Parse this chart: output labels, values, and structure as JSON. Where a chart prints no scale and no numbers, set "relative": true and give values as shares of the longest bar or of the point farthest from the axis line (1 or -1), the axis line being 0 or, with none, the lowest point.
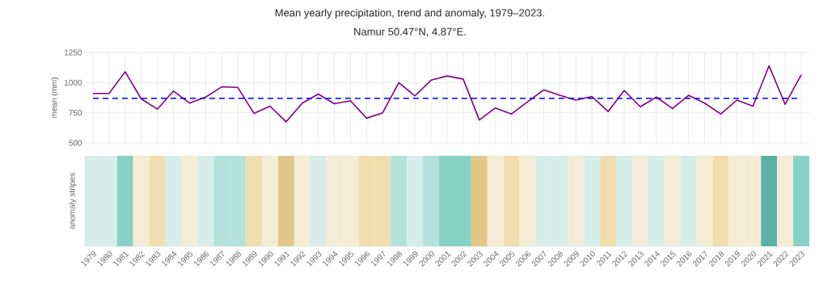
{
  "chart_data": [
    {
      "type": "line",
      "title": "Mean yearly precipitation, trend and anomaly, 1979–2023.",
      "subtitle": "Namur 50.47°N, 4.87°E.",
      "ylabel": "mean (mm)",
      "categories": [
        "1979",
        "1980",
        "1981",
        "1982",
        "1983",
        "1984",
        "1985",
        "1986",
        "1987",
        "1988",
        "1989",
        "1990",
        "1991",
        "1992",
        "1993",
        "1994",
        "1995",
        "1996",
        "1997",
        "1998",
        "1999",
        "2000",
        "2001",
        "2002",
        "2003",
        "2004",
        "2005",
        "2006",
        "2007",
        "2008",
        "2009",
        "2010",
        "2011",
        "2012",
        "2013",
        "2014",
        "2015",
        "2016",
        "2017",
        "2018",
        "2019",
        "2020",
        "2021",
        "2022",
        "2023"
      ],
      "values": [
        910,
        910,
        1090,
        865,
        780,
        930,
        830,
        880,
        965,
        960,
        745,
        805,
        675,
        830,
        905,
        825,
        850,
        705,
        750,
        1000,
        890,
        1020,
        1055,
        1030,
        690,
        790,
        740,
        840,
        940,
        895,
        855,
        885,
        760,
        935,
        800,
        880,
        785,
        895,
        830,
        740,
        855,
        805,
        1140,
        820,
        1065
      ],
      "color": "#800080",
      "ylim": [
        500,
        1250
      ],
      "yticks": [
        500,
        750,
        1000,
        1250
      ],
      "grid": true,
      "tick_labels": "y",
      "marker": "none",
      "ref_lines": [
        {
          "axis": "y",
          "value": 870,
          "color": "#0000ff",
          "line_style": "dashed"
        }
      ]
    },
    {
      "type": "bar",
      "ylabel": "anomaly stripes",
      "relative": true,
      "categories": [
        "1979",
        "1980",
        "1981",
        "1982",
        "1983",
        "1984",
        "1985",
        "1986",
        "1987",
        "1988",
        "1989",
        "1990",
        "1991",
        "1992",
        "1993",
        "1994",
        "1995",
        "1996",
        "1997",
        "1998",
        "1999",
        "2000",
        "2001",
        "2002",
        "2003",
        "2004",
        "2005",
        "2006",
        "2007",
        "2008",
        "2009",
        "2010",
        "2011",
        "2012",
        "2013",
        "2014",
        "2015",
        "2016",
        "2017",
        "2018",
        "2019",
        "2020",
        "2021",
        "2022",
        "2023"
      ],
      "values": [
        1,
        1,
        1,
        1,
        1,
        1,
        1,
        1,
        1,
        1,
        1,
        1,
        1,
        1,
        1,
        1,
        1,
        1,
        1,
        1,
        1,
        1,
        1,
        1,
        1,
        1,
        1,
        1,
        1,
        1,
        1,
        1,
        1,
        1,
        1,
        1,
        1,
        1,
        1,
        1,
        1,
        1,
        1,
        1,
        1
      ],
      "colors": [
        "#d6ede9",
        "#d6ede9",
        "#88d1c5",
        "#f5ecd6",
        "#f1deae",
        "#d6ede9",
        "#f5ecd6",
        "#d6ede9",
        "#b3e2db",
        "#b3e2db",
        "#f1deae",
        "#f5ecd6",
        "#e3c788",
        "#f5ecd6",
        "#d6ede9",
        "#f5ecd6",
        "#f5ecd6",
        "#f1deae",
        "#f1deae",
        "#b3e2db",
        "#d6ede9",
        "#b3e2db",
        "#88d1c5",
        "#88d1c5",
        "#e3c788",
        "#f5ecd6",
        "#f1deae",
        "#f5ecd6",
        "#d6ede9",
        "#d6ede9",
        "#f5ecd6",
        "#d6ede9",
        "#f1deae",
        "#d6ede9",
        "#f5ecd6",
        "#d6ede9",
        "#f5ecd6",
        "#d6ede9",
        "#f5ecd6",
        "#f1deae",
        "#f5ecd6",
        "#f5ecd6",
        "#5bb1a8",
        "#f5ecd6",
        "#88d1c5"
      ]
    }
  ]
}
